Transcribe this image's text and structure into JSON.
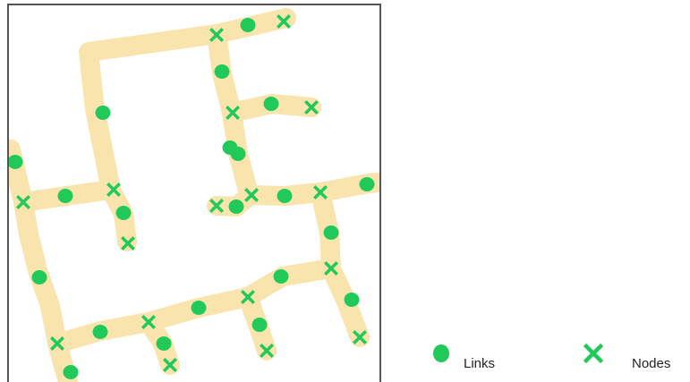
{
  "legend": {
    "links_label": "Links",
    "nodes_label": "Nodes"
  },
  "colors": {
    "road": "#f9e4ad",
    "marker": "#21c95a",
    "frame": "#555555"
  },
  "icons": {
    "link": "filled-ellipse",
    "node": "x-cross"
  }
}
